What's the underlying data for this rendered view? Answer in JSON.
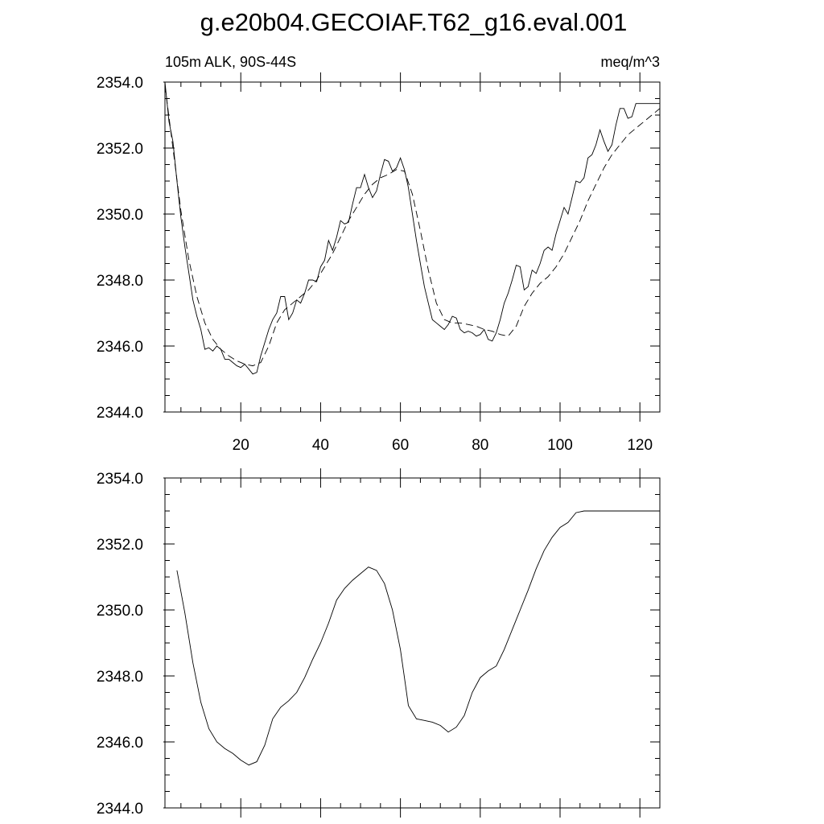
{
  "title": "g.e20b04.GECOIAF.T62_g16.eval.001",
  "chart_data": [
    {
      "type": "line",
      "left_label": "105m ALK, 90S-44S",
      "right_label": "meq/m^3",
      "xlim": [
        1,
        125
      ],
      "ylim": [
        2344.0,
        2354.0
      ],
      "xticks": [
        20,
        40,
        60,
        80,
        100,
        120
      ],
      "xtick_labels": [
        "20",
        "40",
        "60",
        "80",
        "100",
        "120"
      ],
      "yticks": [
        2344.0,
        2346.0,
        2348.0,
        2350.0,
        2352.0,
        2354.0
      ],
      "ytick_labels": [
        "2344.0",
        "2346.0",
        "2348.0",
        "2350.0",
        "2352.0",
        "2354.0"
      ],
      "series": [
        {
          "style": "solid-thin",
          "x": [
            1,
            2,
            3,
            4,
            5,
            6,
            7,
            8,
            9,
            10,
            11,
            12,
            13,
            14,
            15,
            16,
            17,
            18,
            19,
            20,
            21,
            22,
            23,
            24,
            25,
            26,
            27,
            28,
            29,
            30,
            31,
            32,
            33,
            34,
            35,
            36,
            37,
            38,
            39,
            40,
            41,
            42,
            43,
            44,
            45,
            46,
            47,
            48,
            49,
            50,
            51,
            52,
            53,
            54,
            55,
            56,
            57,
            58,
            59,
            60,
            61,
            62,
            63,
            64,
            65,
            66,
            67,
            68,
            69,
            70,
            71,
            72,
            73,
            74,
            75,
            76,
            77,
            78,
            79,
            80,
            81,
            82,
            83,
            84,
            85,
            86,
            87,
            88,
            89,
            90,
            91,
            92,
            93,
            94,
            95,
            96,
            97,
            98,
            99,
            100,
            101,
            102,
            103,
            104,
            105,
            106,
            107,
            108,
            109,
            110,
            111,
            112,
            113,
            114,
            115,
            116,
            117,
            118,
            119,
            120,
            121,
            122,
            123,
            124,
            125
          ],
          "y": [
            2354.0,
            2352.8,
            2352.2,
            2351.0,
            2349.9,
            2349.0,
            2348.2,
            2347.4,
            2346.9,
            2346.5,
            2345.9,
            2345.95,
            2345.85,
            2346.0,
            2345.9,
            2345.6,
            2345.6,
            2345.5,
            2345.4,
            2345.35,
            2345.45,
            2345.3,
            2345.15,
            2345.2,
            2345.7,
            2346.1,
            2346.5,
            2346.8,
            2347.0,
            2347.5,
            2347.5,
            2346.8,
            2347.0,
            2347.4,
            2347.3,
            2347.6,
            2348.0,
            2348.0,
            2347.95,
            2348.4,
            2348.6,
            2349.2,
            2348.9,
            2349.3,
            2349.8,
            2349.7,
            2349.75,
            2350.3,
            2350.8,
            2350.8,
            2351.2,
            2350.8,
            2350.5,
            2350.7,
            2351.2,
            2351.65,
            2351.6,
            2351.3,
            2351.4,
            2351.7,
            2351.35,
            2350.8,
            2350.0,
            2349.2,
            2348.5,
            2347.8,
            2347.3,
            2346.8,
            2346.7,
            2346.6,
            2346.5,
            2346.65,
            2346.9,
            2346.85,
            2346.5,
            2346.4,
            2346.45,
            2346.4,
            2346.3,
            2346.35,
            2346.5,
            2346.2,
            2346.15,
            2346.4,
            2346.8,
            2347.3,
            2347.6,
            2348.0,
            2348.45,
            2348.4,
            2347.7,
            2347.8,
            2348.3,
            2348.2,
            2348.5,
            2348.9,
            2349.0,
            2348.9,
            2349.4,
            2349.8,
            2350.2,
            2350.0,
            2350.5,
            2351.0,
            2350.95,
            2351.1,
            2351.7,
            2351.8,
            2352.1,
            2352.55,
            2352.2,
            2351.9,
            2352.1,
            2352.7,
            2353.2,
            2353.2,
            2352.9,
            2352.95,
            2353.35,
            2353.35,
            2353.35,
            2353.35,
            2353.35,
            2353.35,
            2353.35
          ]
        },
        {
          "style": "dashed",
          "x": [
            1,
            3,
            5,
            7,
            9,
            11,
            13,
            15,
            17,
            19,
            21,
            23,
            25,
            27,
            29,
            31,
            33,
            35,
            37,
            39,
            41,
            43,
            45,
            47,
            49,
            51,
            53,
            55,
            57,
            59,
            61,
            63,
            65,
            67,
            69,
            71,
            73,
            75,
            77,
            79,
            81,
            83,
            85,
            87,
            89,
            91,
            93,
            95,
            97,
            99,
            101,
            103,
            105,
            107,
            109,
            111,
            113,
            115,
            117,
            119,
            121,
            123,
            125
          ],
          "y": [
            2353.9,
            2352.0,
            2350.1,
            2348.6,
            2347.5,
            2346.7,
            2346.2,
            2345.9,
            2345.7,
            2345.55,
            2345.45,
            2345.4,
            2345.5,
            2346.0,
            2346.7,
            2347.1,
            2347.3,
            2347.5,
            2347.7,
            2348.0,
            2348.4,
            2348.8,
            2349.3,
            2349.8,
            2350.2,
            2350.6,
            2350.9,
            2351.1,
            2351.2,
            2351.35,
            2351.3,
            2350.6,
            2349.5,
            2348.3,
            2347.3,
            2346.8,
            2346.7,
            2346.7,
            2346.65,
            2346.6,
            2346.5,
            2346.45,
            2346.35,
            2346.3,
            2346.6,
            2347.2,
            2347.6,
            2347.9,
            2348.1,
            2348.4,
            2348.8,
            2349.3,
            2349.8,
            2350.4,
            2350.9,
            2351.4,
            2351.8,
            2352.1,
            2352.4,
            2352.6,
            2352.8,
            2353.0,
            2353.2
          ]
        }
      ]
    },
    {
      "type": "line",
      "xlim": [
        1,
        125
      ],
      "ylim": [
        2344.0,
        2354.0
      ],
      "xticks": [
        20,
        40,
        60,
        80,
        100,
        120
      ],
      "yticks": [
        2344.0,
        2346.0,
        2348.0,
        2350.0,
        2352.0,
        2354.0
      ],
      "ytick_labels": [
        "2344.0",
        "2346.0",
        "2348.0",
        "2350.0",
        "2352.0",
        "2354.0"
      ],
      "series": [
        {
          "style": "solid-thin",
          "x": [
            4,
            6,
            8,
            10,
            12,
            14,
            16,
            18,
            20,
            22,
            24,
            26,
            28,
            30,
            32,
            34,
            36,
            38,
            40,
            42,
            44,
            46,
            48,
            50,
            52,
            54,
            56,
            58,
            60,
            61,
            62,
            64,
            66,
            68,
            70,
            72,
            74,
            76,
            78,
            80,
            82,
            84,
            86,
            88,
            90,
            92,
            94,
            96,
            98,
            100,
            102,
            104,
            106,
            108,
            110,
            112,
            114,
            116,
            118,
            120,
            122,
            124
          ],
          "y": [
            2351.2,
            2349.9,
            2348.4,
            2347.2,
            2346.4,
            2346.0,
            2345.8,
            2345.65,
            2345.45,
            2345.3,
            2345.4,
            2345.9,
            2346.7,
            2347.05,
            2347.25,
            2347.5,
            2347.95,
            2348.5,
            2349.0,
            2349.6,
            2350.3,
            2350.65,
            2350.9,
            2351.1,
            2351.3,
            2351.2,
            2350.8,
            2350.0,
            2348.8,
            2347.95,
            2347.1,
            2346.7,
            2346.65,
            2346.6,
            2346.5,
            2346.3,
            2346.45,
            2346.8,
            2347.5,
            2347.95,
            2348.15,
            2348.3,
            2348.8,
            2349.4,
            2350.0,
            2350.6,
            2351.25,
            2351.8,
            2352.2,
            2352.5,
            2352.65,
            2352.95,
            2353.0,
            2353.0,
            2353.0,
            2353.0,
            2353.0,
            2353.0,
            2353.0,
            2353.0,
            2353.0,
            2353.0
          ]
        }
      ]
    }
  ]
}
